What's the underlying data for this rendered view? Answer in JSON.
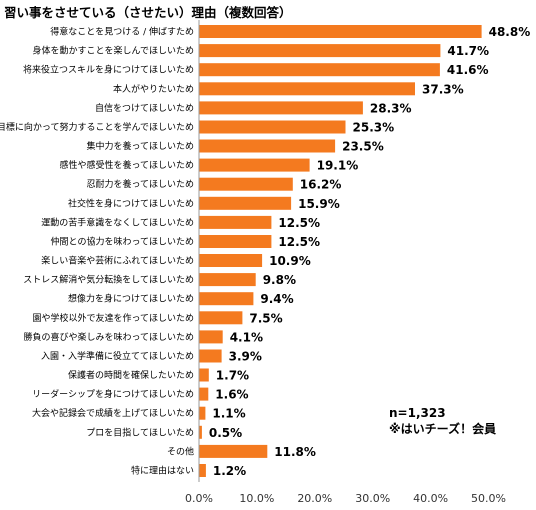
{
  "chart_data": {
    "type": "bar",
    "orientation": "horizontal",
    "title": "習い事をさせている（させたい）理由（複数回答）",
    "categories": [
      "得意なことを見つける / 伸ばすため",
      "身体を動かすことを楽しんでほしいため",
      "将来役立つスキルを身につけてほしいため",
      "本人がやりたいため",
      "自信をつけてほしいため",
      "目標に向かって努力することを学んでほしいため",
      "集中力を養ってほしいため",
      "感性や感受性を養ってほしいため",
      "忍耐力を養ってほしいため",
      "社交性を身につけてほしいため",
      "運動の苦手意識をなくしてほしいため",
      "仲間との協力を味わってほしいため",
      "楽しい音楽や芸術にふれてほしいため",
      "ストレス解消や気分転換をしてほしいため",
      "想像力を身につけてほしいため",
      "園や学校以外で友達を作ってほしいため",
      "勝負の喜びや楽しみを味わってほしいため",
      "入園・入学準備に役立ててほしいため",
      "保護者の時間を確保したいため",
      "リーダーシップを身につけてほしいため",
      "大会や記録会で成績を上げてほしいため",
      "プロを目指してほしいため",
      "その他",
      "特に理由はない"
    ],
    "values": [
      48.8,
      41.7,
      41.6,
      37.3,
      28.3,
      25.3,
      23.5,
      19.1,
      16.2,
      15.9,
      12.5,
      12.5,
      10.9,
      9.8,
      9.4,
      7.5,
      4.1,
      3.9,
      1.7,
      1.6,
      1.1,
      0.5,
      11.8,
      1.2
    ],
    "value_labels": [
      "48.8%",
      "41.7%",
      "41.6%",
      "37.3%",
      "28.3%",
      "25.3%",
      "23.5%",
      "19.1%",
      "16.2%",
      "15.9%",
      "12.5%",
      "12.5%",
      "10.9%",
      "9.8%",
      "9.4%",
      "7.5%",
      "4.1%",
      "3.9%",
      "1.7%",
      "1.6%",
      "1.1%",
      "0.5%",
      "11.8%",
      "1.2%"
    ],
    "xlim": [
      0,
      50
    ],
    "ticks": [
      0,
      10,
      20,
      30,
      40,
      50
    ],
    "tick_labels": [
      "0.0%",
      "10.0%",
      "20.0%",
      "30.0%",
      "40.0%",
      "50.0%"
    ],
    "bar_color": "#f47a1f",
    "axis_color": "#999999",
    "grid": false,
    "notes": [
      "n=1,323",
      "※はいチーズ！会員"
    ]
  }
}
